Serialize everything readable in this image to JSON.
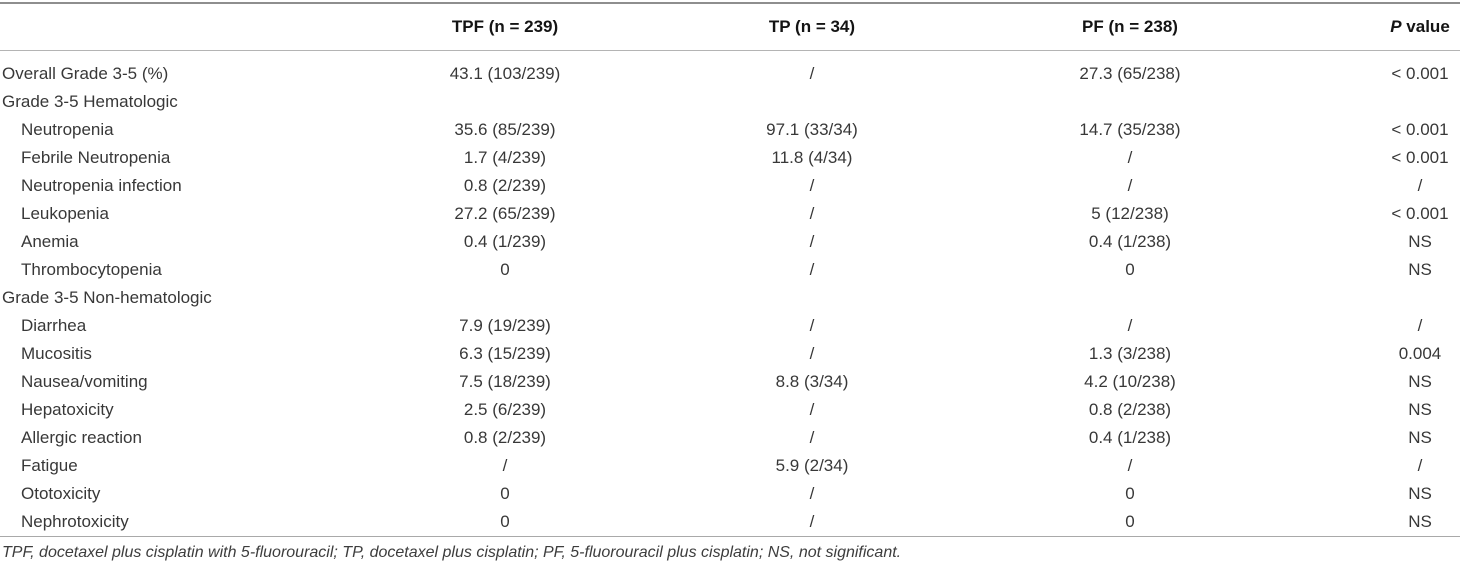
{
  "table": {
    "header": {
      "columns": [
        "TPF (n = 239)",
        "TP (n = 34)",
        "PF (n = 238)"
      ],
      "p_italic": "P",
      "p_rest": "value"
    },
    "rows": [
      {
        "label": "Overall Grade 3-5 (%)",
        "indent": false,
        "cells": [
          "43.1 (103/239)",
          "/",
          "27.3 (65/238)",
          "< 0.001"
        ]
      },
      {
        "label": "Grade 3-5 Hematologic",
        "indent": false,
        "cells": [
          "",
          "",
          "",
          ""
        ]
      },
      {
        "label": "Neutropenia",
        "indent": true,
        "cells": [
          "35.6 (85/239)",
          "97.1 (33/34)",
          "14.7 (35/238)",
          "< 0.001"
        ]
      },
      {
        "label": "Febrile Neutropenia",
        "indent": true,
        "cells": [
          "1.7 (4/239)",
          "11.8 (4/34)",
          "/",
          "< 0.001"
        ]
      },
      {
        "label": "Neutropenia infection",
        "indent": true,
        "cells": [
          "0.8 (2/239)",
          "/",
          "/",
          "/"
        ]
      },
      {
        "label": "Leukopenia",
        "indent": true,
        "cells": [
          "27.2 (65/239)",
          "/",
          "5 (12/238)",
          "< 0.001"
        ]
      },
      {
        "label": "Anemia",
        "indent": true,
        "cells": [
          "0.4 (1/239)",
          "/",
          "0.4 (1/238)",
          "NS"
        ]
      },
      {
        "label": "Thrombocytopenia",
        "indent": true,
        "cells": [
          "0",
          "/",
          "0",
          "NS"
        ]
      },
      {
        "label": "Grade 3-5 Non-hematologic",
        "indent": false,
        "cells": [
          "",
          "",
          "",
          ""
        ]
      },
      {
        "label": "Diarrhea",
        "indent": true,
        "cells": [
          "7.9 (19/239)",
          "/",
          "/",
          "/"
        ]
      },
      {
        "label": "Mucositis",
        "indent": true,
        "cells": [
          "6.3 (15/239)",
          "/",
          "1.3 (3/238)",
          "0.004"
        ]
      },
      {
        "label": "Nausea/vomiting",
        "indent": true,
        "cells": [
          "7.5 (18/239)",
          "8.8 (3/34)",
          "4.2 (10/238)",
          "NS"
        ]
      },
      {
        "label": "Hepatoxicity",
        "indent": true,
        "cells": [
          "2.5 (6/239)",
          "/",
          "0.8 (2/238)",
          "NS"
        ]
      },
      {
        "label": "Allergic reaction",
        "indent": true,
        "cells": [
          "0.8 (2/239)",
          "/",
          "0.4 (1/238)",
          "NS"
        ]
      },
      {
        "label": "Fatigue",
        "indent": true,
        "cells": [
          "/",
          "5.9 (2/34)",
          "/",
          "/"
        ]
      },
      {
        "label": "Ototoxicity",
        "indent": true,
        "cells": [
          "0",
          "/",
          "0",
          "NS"
        ]
      },
      {
        "label": "Nephrotoxicity",
        "indent": true,
        "cells": [
          "0",
          "/",
          "0",
          "NS"
        ]
      }
    ]
  },
  "footnote": "TPF, docetaxel plus cisplatin with 5-fluorouracil; TP, docetaxel plus cisplatin; PF, 5-fluorouracil plus cisplatin; NS, not significant.",
  "colors": {
    "background": "#ffffff",
    "body_text": "#383838",
    "header_text": "#141414",
    "rule_top": "#8e8e8e",
    "rule_light": "#b4b4b4"
  }
}
